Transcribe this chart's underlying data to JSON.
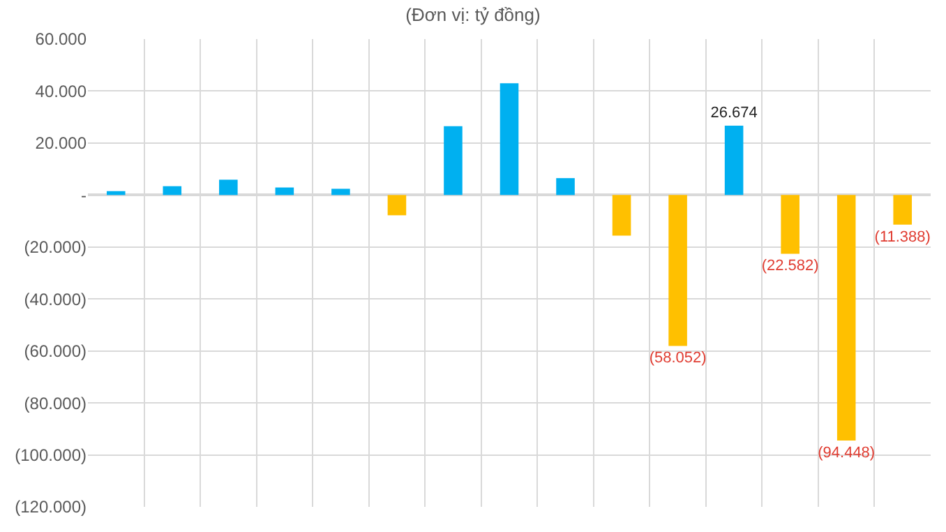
{
  "chart_data": {
    "type": "bar",
    "title": "(Đơn vị: tỷ đồng)",
    "categories": [
      null,
      null,
      null,
      null,
      null,
      null,
      null,
      null,
      null,
      null,
      null,
      null,
      null,
      null,
      null
    ],
    "values": [
      1500,
      3400,
      5900,
      2900,
      2400,
      -7800,
      26500,
      43000,
      6500,
      -15600,
      -58052,
      26674,
      -22582,
      -94448,
      -11388
    ],
    "colors": [
      "#00b0f0",
      "#00b0f0",
      "#00b0f0",
      "#00b0f0",
      "#00b0f0",
      "#ffc000",
      "#00b0f0",
      "#00b0f0",
      "#00b0f0",
      "#ffc000",
      "#ffc000",
      "#00b0f0",
      "#ffc000",
      "#ffc000",
      "#ffc000"
    ],
    "value_labels": [
      null,
      null,
      null,
      null,
      null,
      null,
      null,
      null,
      null,
      null,
      "(58.052)",
      "26.674",
      "(22.582)",
      "(94.448)",
      "(11.388)"
    ],
    "ylim": [
      -120000,
      60000
    ],
    "yticks": [
      {
        "value": 60000,
        "label": "60.000"
      },
      {
        "value": 40000,
        "label": "40.000"
      },
      {
        "value": 20000,
        "label": "20.000"
      },
      {
        "value": 0,
        "label": "-"
      },
      {
        "value": -20000,
        "label": "(20.000)"
      },
      {
        "value": -40000,
        "label": "(40.000)"
      },
      {
        "value": -60000,
        "label": "(60.000)"
      },
      {
        "value": -80000,
        "label": "(80.000)"
      },
      {
        "value": -100000,
        "label": "(100.000)"
      },
      {
        "value": -120000,
        "label": "(120.000)"
      }
    ],
    "grid": true
  }
}
